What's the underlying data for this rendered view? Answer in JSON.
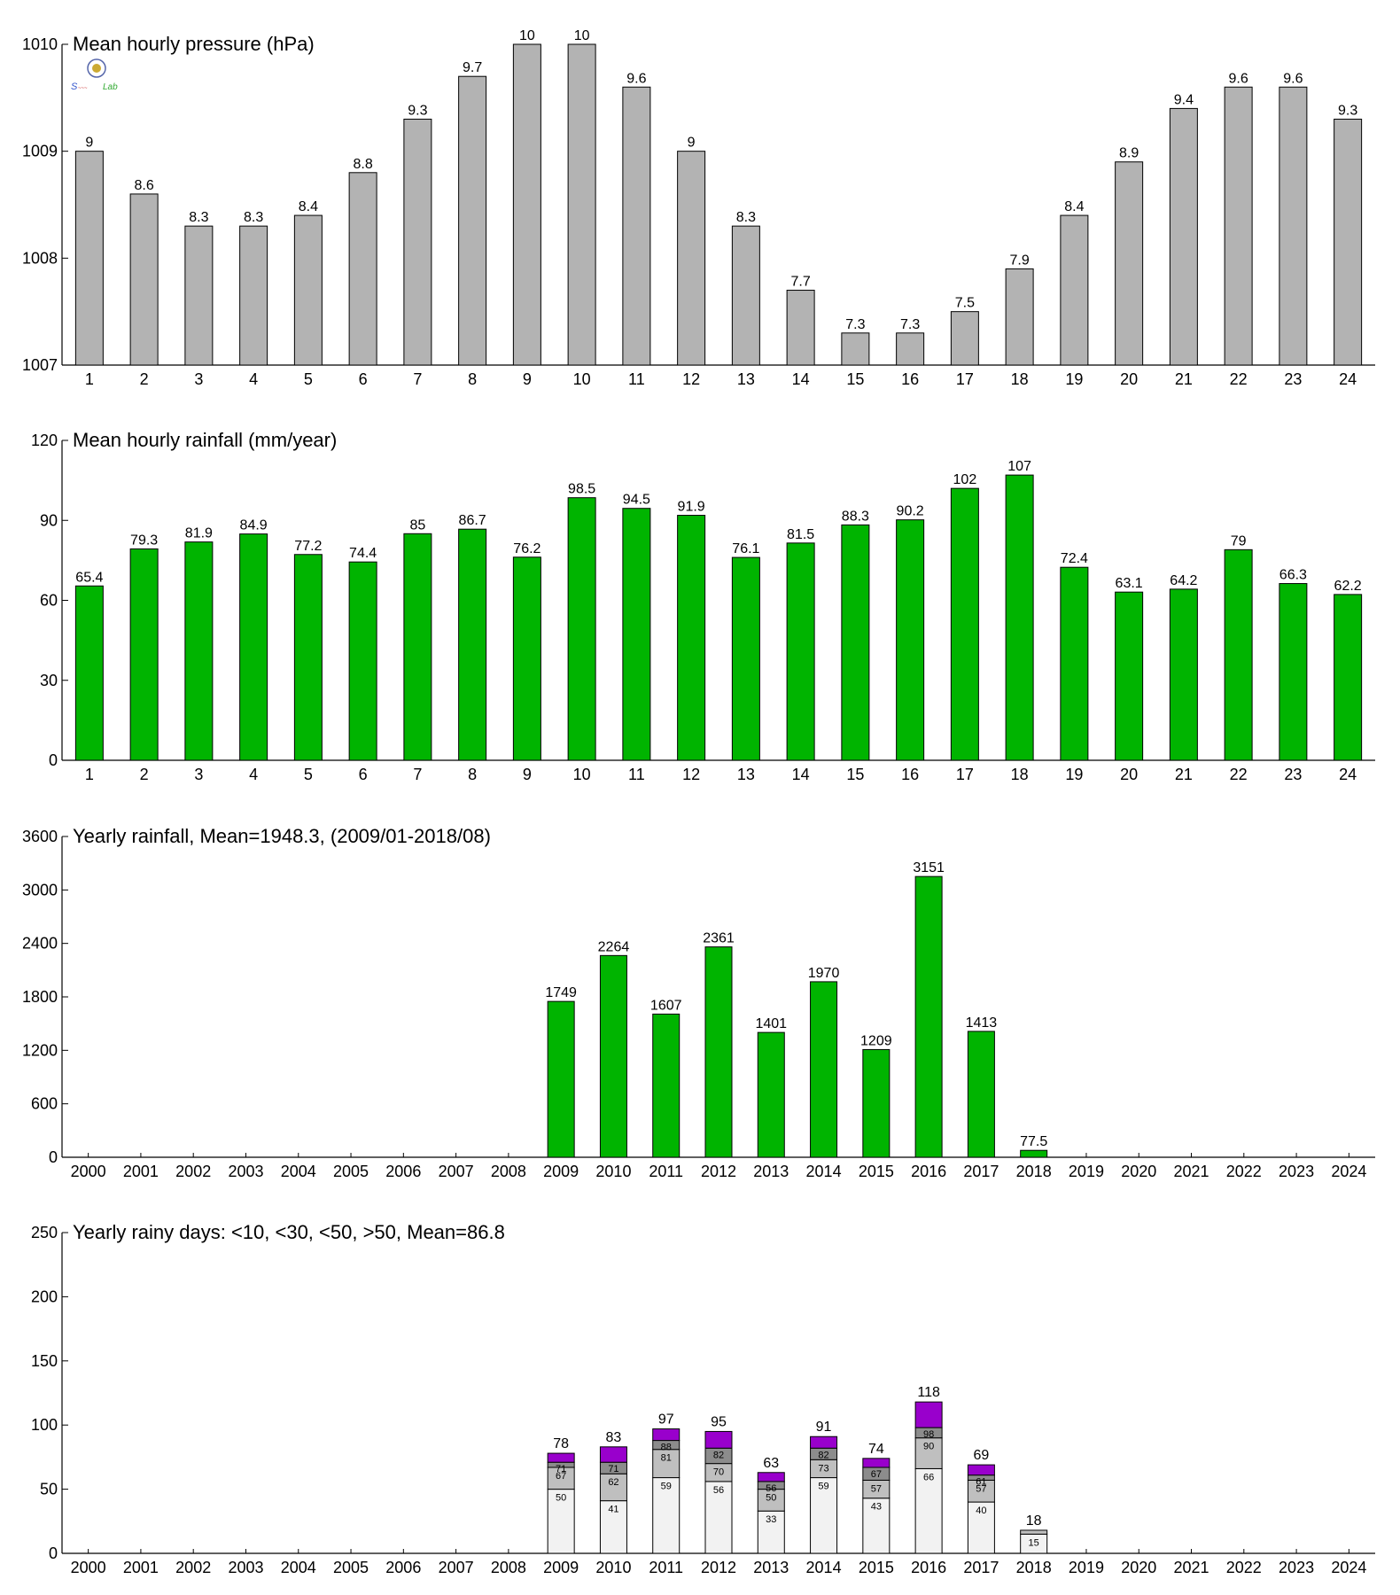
{
  "logo": {
    "text": "Lab"
  },
  "chart_data": [
    {
      "type": "bar",
      "title": "Mean hourly pressure (hPa)",
      "categories": [
        "1",
        "2",
        "3",
        "4",
        "5",
        "6",
        "7",
        "8",
        "9",
        "10",
        "11",
        "12",
        "13",
        "14",
        "15",
        "16",
        "17",
        "18",
        "19",
        "20",
        "21",
        "22",
        "23",
        "24"
      ],
      "values": [
        1009.0,
        1008.6,
        1008.3,
        1008.3,
        1008.4,
        1008.8,
        1009.3,
        1009.7,
        1010.0,
        1010.0,
        1009.6,
        1009.0,
        1008.3,
        1007.7,
        1007.3,
        1007.3,
        1007.5,
        1007.9,
        1008.4,
        1008.9,
        1009.4,
        1009.6,
        1009.6,
        1009.3
      ],
      "data_labels": [
        "9",
        "8.6",
        "8.3",
        "8.3",
        "8.4",
        "8.8",
        "9.3",
        "9.7",
        "10",
        "10",
        "9.6",
        "9",
        "8.3",
        "7.7",
        "7.3",
        "7.3",
        "7.5",
        "7.9",
        "8.4",
        "8.9",
        "9.4",
        "9.6",
        "9.6",
        "9.3"
      ],
      "ylim": [
        1007,
        1010
      ],
      "yticks": [
        "1007",
        "1008",
        "1009",
        "1010"
      ],
      "color": "#b3b3b3"
    },
    {
      "type": "bar",
      "title": "Mean hourly rainfall (mm/year)",
      "categories": [
        "1",
        "2",
        "3",
        "4",
        "5",
        "6",
        "7",
        "8",
        "9",
        "10",
        "11",
        "12",
        "13",
        "14",
        "15",
        "16",
        "17",
        "18",
        "19",
        "20",
        "21",
        "22",
        "23",
        "24"
      ],
      "values": [
        65.4,
        79.3,
        81.9,
        84.9,
        77.2,
        74.4,
        85,
        86.7,
        76.2,
        98.5,
        94.5,
        91.9,
        76.1,
        81.5,
        88.3,
        90.2,
        102,
        107,
        72.4,
        63.1,
        64.2,
        79,
        66.3,
        62.2
      ],
      "data_labels": [
        "65.4",
        "79.3",
        "81.9",
        "84.9",
        "77.2",
        "74.4",
        "85",
        "86.7",
        "76.2",
        "98.5",
        "94.5",
        "91.9",
        "76.1",
        "81.5",
        "88.3",
        "90.2",
        "102",
        "107",
        "72.4",
        "63.1",
        "64.2",
        "79",
        "66.3",
        "62.2"
      ],
      "ylim": [
        0,
        120
      ],
      "yticks": [
        "0",
        "30",
        "60",
        "90",
        "120"
      ],
      "color": "#00b400"
    },
    {
      "type": "bar",
      "title": "Yearly rainfall, Mean=1948.3, (2009/01-2018/08)",
      "categories": [
        "2000",
        "2001",
        "2002",
        "2003",
        "2004",
        "2005",
        "2006",
        "2007",
        "2008",
        "2009",
        "2010",
        "2011",
        "2012",
        "2013",
        "2014",
        "2015",
        "2016",
        "2017",
        "2018",
        "2019",
        "2020",
        "2021",
        "2022",
        "2023",
        "2024"
      ],
      "values": [
        null,
        null,
        null,
        null,
        null,
        null,
        null,
        null,
        null,
        1749,
        2264,
        1607,
        2361,
        1401,
        1970,
        1209,
        3151,
        1413,
        77.5,
        null,
        null,
        null,
        null,
        null,
        null
      ],
      "data_labels": [
        "",
        "",
        "",
        "",
        "",
        "",
        "",
        "",
        "",
        "1749",
        "2264",
        "1607",
        "2361",
        "1401",
        "1970",
        "1209",
        "3151",
        "1413",
        "77.5",
        "",
        "",
        "",
        "",
        "",
        ""
      ],
      "ylim": [
        0,
        3600
      ],
      "yticks": [
        "0",
        "600",
        "1200",
        "1800",
        "2400",
        "3000",
        "3600"
      ],
      "color": "#00b400"
    },
    {
      "type": "bar",
      "stacked": true,
      "title": "Yearly rainy days: <10, <30, <50, >50, Mean=86.8",
      "categories": [
        "2000",
        "2001",
        "2002",
        "2003",
        "2004",
        "2005",
        "2006",
        "2007",
        "2008",
        "2009",
        "2010",
        "2011",
        "2012",
        "2013",
        "2014",
        "2015",
        "2016",
        "2017",
        "2018",
        "2019",
        "2020",
        "2021",
        "2022",
        "2023",
        "2024"
      ],
      "ylim": [
        0,
        250
      ],
      "yticks": [
        "0",
        "50",
        "100",
        "150",
        "200",
        "250"
      ],
      "series_colors": [
        "#f2f2f2",
        "#bfbfbf",
        "#8c8c8c",
        "#9900cc"
      ],
      "entries": [
        {
          "year": "2009",
          "c1": 50,
          "c2": 67,
          "c3": 71,
          "total": 78,
          "l1": "50",
          "l2": "67",
          "l3": "71",
          "lt": "78"
        },
        {
          "year": "2010",
          "c1": 41,
          "c2": 62,
          "c3": 71,
          "total": 83,
          "l1": "41",
          "l2": "62",
          "l3": "71",
          "lt": "83"
        },
        {
          "year": "2011",
          "c1": 59,
          "c2": 81,
          "c3": 88,
          "total": 97,
          "l1": "59",
          "l2": "81",
          "l3": "88",
          "lt": "97"
        },
        {
          "year": "2012",
          "c1": 56,
          "c2": 70,
          "c3": 82,
          "total": 95,
          "l1": "56",
          "l2": "70",
          "l3": "82",
          "lt": "95"
        },
        {
          "year": "2013",
          "c1": 33,
          "c2": 50,
          "c3": 56,
          "total": 63,
          "l1": "33",
          "l2": "50",
          "l3": "56",
          "lt": "63"
        },
        {
          "year": "2014",
          "c1": 59,
          "c2": 73,
          "c3": 82,
          "total": 91,
          "l1": "59",
          "l2": "73",
          "l3": "82",
          "lt": "91"
        },
        {
          "year": "2015",
          "c1": 43,
          "c2": 57,
          "c3": 67,
          "total": 74,
          "l1": "43",
          "l2": "57",
          "l3": "67",
          "lt": "74"
        },
        {
          "year": "2016",
          "c1": 66,
          "c2": 90,
          "c3": 98,
          "total": 118,
          "l1": "66",
          "l2": "90",
          "l3": "98",
          "lt": "118"
        },
        {
          "year": "2017",
          "c1": 40,
          "c2": 57,
          "c3": 61,
          "total": 69,
          "l1": "40",
          "l2": "57",
          "l3": "61",
          "lt": "69"
        },
        {
          "year": "2018",
          "c1": 15,
          "c2": 18,
          "c3": 18,
          "total": 18,
          "l1": "15",
          "l2": "",
          "l3": "",
          "lt": "18"
        }
      ]
    }
  ]
}
